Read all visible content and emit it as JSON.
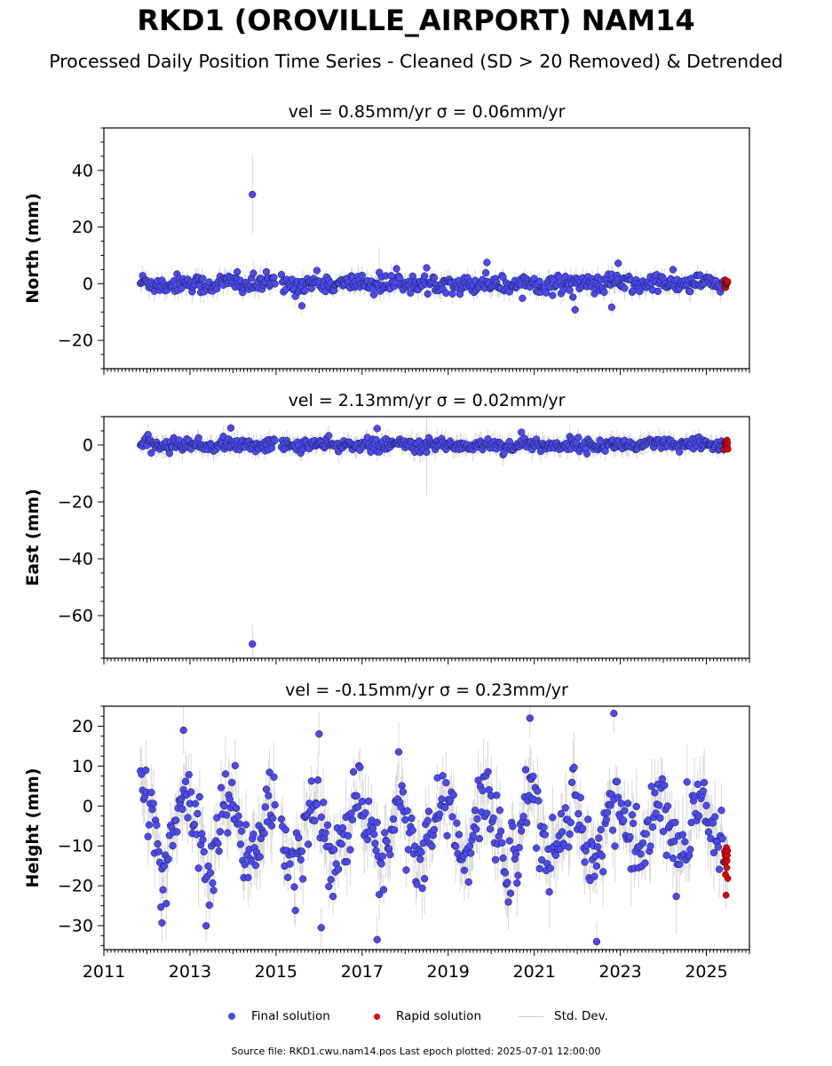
{
  "figure": {
    "title": "RKD1 (OROVILLE_AIRPORT) NAM14",
    "subtitle": "Processed Daily Position Time Series - Cleaned (SD > 20 Removed) & Detrended",
    "source": "Source file: RKD1.cwu.nam14.pos  Last epoch plotted: 2025-07-01 12:00:00"
  },
  "legend": {
    "final": "Final solution",
    "rapid": "Rapid solution",
    "stddev": "Std. Dev."
  },
  "colors": {
    "final": "#4a4af0",
    "rapid": "#e00000",
    "stddev": "#b0b0b0"
  },
  "chart_data": [
    {
      "type": "scatter",
      "title": "vel = 0.85mm/yr   σ = 0.06mm/yr",
      "ylabel": "North (mm)",
      "xlim": [
        2011,
        2026
      ],
      "ylim": [
        -30,
        55
      ],
      "yticks": [
        -20,
        0,
        20,
        40
      ],
      "final_range": [
        2011.85,
        2025.42
      ],
      "rapid_range": [
        2025.42,
        2025.5
      ],
      "seasonal_amp": 0.6,
      "noise": 1.6,
      "sd": 3,
      "outliers": [
        {
          "x": 2014.45,
          "y": 31.5,
          "sd": 14
        },
        {
          "x": 2019.9,
          "y": 7.5,
          "sd": 2
        },
        {
          "x": 2022.95,
          "y": 7.2,
          "sd": 2
        },
        {
          "x": 2021.95,
          "y": -9.2,
          "sd": 3
        },
        {
          "x": 2022.8,
          "y": -8.3,
          "sd": 3
        },
        {
          "x": 2015.6,
          "y": -7.8,
          "sd": 3
        },
        {
          "x": 2014.1,
          "y": 4.2,
          "sd": 3
        },
        {
          "x": 2017.4,
          "y": 4.0,
          "sd": 9
        }
      ]
    },
    {
      "type": "scatter",
      "title": "vel = 2.13mm/yr   σ = 0.02mm/yr",
      "ylabel": "East (mm)",
      "xlim": [
        2011,
        2026
      ],
      "ylim": [
        -75,
        10
      ],
      "yticks": [
        -60,
        -40,
        -20,
        0
      ],
      "final_range": [
        2011.85,
        2025.42
      ],
      "rapid_range": [
        2025.42,
        2025.5
      ],
      "seasonal_amp": 0.4,
      "noise": 1.1,
      "sd": 3,
      "outliers": [
        {
          "x": 2014.45,
          "y": -70,
          "sd": 7
        },
        {
          "x": 2013.95,
          "y": 6.0,
          "sd": 2
        },
        {
          "x": 2017.35,
          "y": 5.8,
          "sd": 2
        },
        {
          "x": 2020.7,
          "y": 4.5,
          "sd": 2
        },
        {
          "x": 2018.5,
          "y": -2.5,
          "sd": 15
        }
      ]
    },
    {
      "type": "scatter",
      "title": "vel = -0.15mm/yr   σ = 0.23mm/yr",
      "ylabel": "Height (mm)",
      "xlabel": "",
      "xlim": [
        2011,
        2026
      ],
      "ylim": [
        -36,
        25
      ],
      "yticks": [
        -30,
        -20,
        -10,
        0,
        10,
        20
      ],
      "xticks": [
        2011,
        2013,
        2015,
        2017,
        2019,
        2021,
        2023,
        2025
      ],
      "final_range": [
        2011.85,
        2025.42
      ],
      "rapid_range": [
        2025.42,
        2025.5
      ],
      "seasonal_amp": 8,
      "offset": -6,
      "noise": 5,
      "sd": 7,
      "outliers": [
        {
          "x": 2012.85,
          "y": 19,
          "sd": 6
        },
        {
          "x": 2020.9,
          "y": 22,
          "sd": 5
        },
        {
          "x": 2022.85,
          "y": 23.2,
          "sd": 5
        },
        {
          "x": 2022.45,
          "y": -34,
          "sd": 5
        },
        {
          "x": 2017.35,
          "y": -33.5,
          "sd": 6
        },
        {
          "x": 2012.35,
          "y": -29.3,
          "sd": 5
        },
        {
          "x": 2016.05,
          "y": -30.5,
          "sd": 5
        }
      ]
    }
  ]
}
